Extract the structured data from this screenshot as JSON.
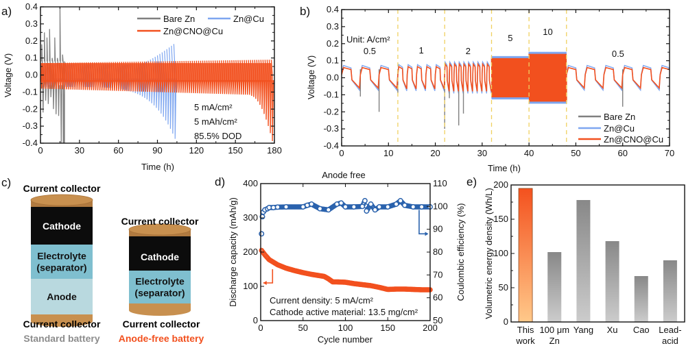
{
  "chart_data": [
    {
      "panel": "a)",
      "type": "line",
      "xlabel": "Time (h)",
      "ylabel": "Voltage (V)",
      "xlim": [
        0,
        180
      ],
      "ylim": [
        -0.4,
        0.4
      ],
      "xticks": [
        0,
        30,
        60,
        90,
        120,
        150,
        180
      ],
      "yticks": [
        "-0.4",
        "-0.3",
        "-0.2",
        "-0.1",
        "0.0",
        "0.1",
        "0.2",
        "0.3",
        "0.4"
      ],
      "legend": [
        "Bare Zn",
        "Zn@Cu",
        "Zn@CNO@Cu"
      ],
      "legend_position": "top-right",
      "annotations": [
        "5 mA/cm²",
        "5 mAh/cm²",
        "85.5% DOD"
      ],
      "series": [
        {
          "name": "Bare Zn",
          "color": "#808080",
          "end_time_h": 18,
          "max_spike_V": 0.4,
          "min_V": -0.4,
          "typical_upper_V": 0.08,
          "typical_lower_V": -0.15
        },
        {
          "name": "Zn@Cu",
          "color": "#7ea6f0",
          "end_time_h": 104,
          "upper_start_V": 0.06,
          "upper_end_V": 0.19,
          "lower_start_V": -0.07,
          "lower_end_V": -0.4
        },
        {
          "name": "Zn@CNO@Cu",
          "color": "#f2501e",
          "end_time_h": 178,
          "upper_start_V": 0.07,
          "upper_end_V": 0.09,
          "lower_start_V": -0.08,
          "lower_end_V": -0.4
        }
      ]
    },
    {
      "panel": "b)",
      "type": "line",
      "xlabel": "Time (h)",
      "ylabel": "Voltage (V)",
      "xlim": [
        0,
        70
      ],
      "ylim": [
        -0.4,
        0.4
      ],
      "xticks": [
        0,
        10,
        20,
        30,
        40,
        50,
        60,
        70
      ],
      "yticks": [
        "-0.4",
        "-0.3",
        "-0.2",
        "-0.1",
        "0.0",
        "0.1",
        "0.2",
        "0.3",
        "0.4"
      ],
      "unit_label": "Unit: A/cm²",
      "segments": [
        {
          "label": "0.5",
          "start": 0,
          "end": 12,
          "amp": 0.06
        },
        {
          "label": "1",
          "start": 12,
          "end": 22,
          "amp": 0.065
        },
        {
          "label": "2",
          "start": 22,
          "end": 32,
          "amp": 0.08
        },
        {
          "label": "5",
          "start": 32,
          "end": 40,
          "amp": 0.115
        },
        {
          "label": "10",
          "start": 40,
          "end": 48,
          "amp": 0.14
        },
        {
          "label": "0.5",
          "start": 48,
          "end": 70,
          "amp": 0.06
        }
      ],
      "dividers": [
        12,
        22,
        32,
        40,
        48
      ],
      "divider_color": "#f0d060",
      "bare_zn_spikes": [
        {
          "t": 4,
          "v": -0.11
        },
        {
          "t": 8,
          "v": -0.2
        },
        {
          "t": 12,
          "v": -0.09
        },
        {
          "t": 22,
          "v": -0.3
        },
        {
          "t": 23,
          "v": -0.12
        },
        {
          "t": 25,
          "v": -0.28
        },
        {
          "t": 26,
          "v": -0.21
        },
        {
          "t": 60,
          "v": -0.17
        }
      ],
      "legend": [
        "Bare Zn",
        "Zn@Cu",
        "Zn@CNO@Cu"
      ],
      "legend_position": "bottom-right"
    },
    {
      "panel": "d)",
      "type": "scatter",
      "title": "Anode free",
      "xlabel": "Cycle number",
      "ylabel": "Discharge capacity (mAh/g)",
      "y2label": "Coulombic efficiency (%)",
      "xlim": [
        0,
        200
      ],
      "ylim": [
        0,
        400
      ],
      "y2lim": [
        50,
        110
      ],
      "xticks": [
        0,
        50,
        100,
        150,
        200
      ],
      "yticks": [
        0,
        100,
        200,
        300,
        400
      ],
      "y2ticks": [
        50,
        60,
        70,
        80,
        90,
        100,
        110
      ],
      "annotations": [
        "Current density: 5 mA/cm²",
        "Cathode active material: 13.5 mg/cm²"
      ],
      "series": [
        {
          "name": "Discharge capacity",
          "axis": "left",
          "color": "#f2501e",
          "x": [
            1,
            5,
            10,
            20,
            30,
            40,
            50,
            60,
            70,
            75,
            80,
            85,
            90,
            100,
            110,
            120,
            130,
            140,
            150,
            160,
            170,
            180,
            190,
            200
          ],
          "y": [
            205,
            192,
            178,
            163,
            153,
            146,
            140,
            135,
            131,
            129,
            122,
            113,
            113,
            112,
            108,
            105,
            102,
            97,
            91,
            92,
            92,
            91,
            90,
            90
          ]
        },
        {
          "name": "Coulombic efficiency",
          "axis": "right",
          "color": "#2a62ad",
          "x": [
            1,
            2,
            3,
            5,
            8,
            10,
            15,
            20,
            30,
            50,
            55,
            60,
            70,
            80,
            90,
            95,
            100,
            110,
            120,
            123,
            125,
            130,
            135,
            140,
            150,
            160,
            165,
            170,
            180,
            190,
            200
          ],
          "y": [
            88,
            95.5,
            97.5,
            98.5,
            99,
            99.5,
            99.5,
            99.7,
            99.8,
            99.8,
            100.5,
            101,
            99,
            98.5,
            101,
            101.5,
            99.8,
            99.8,
            100,
            102.5,
            98,
            101,
            98.5,
            99.8,
            99.8,
            101,
            102.5,
            100.5,
            99.8,
            99.8,
            99.8
          ]
        }
      ]
    },
    {
      "panel": "e)",
      "type": "bar",
      "ylabel": "Volumetric energy density (Wh/L)",
      "ylim": [
        0,
        200
      ],
      "yticks": [
        0,
        50,
        100,
        150,
        200
      ],
      "categories": [
        "This work",
        "100 μm Zn",
        "Yang",
        "Xu",
        "Cao",
        "Lead-acid"
      ],
      "category_lines": [
        [
          "This",
          "work"
        ],
        [
          "100 μm",
          "Zn"
        ],
        [
          "Yang"
        ],
        [
          "Xu"
        ],
        [
          "Cao"
        ],
        [
          "Lead-",
          "acid"
        ]
      ],
      "values": [
        195,
        102,
        178,
        118,
        67,
        90
      ],
      "colors": {
        "highlight_top": "#f4511e",
        "highlight_bottom": "#ffc98a",
        "other_top": "#888888",
        "other_bottom": "#cccccc"
      }
    }
  ],
  "diagram_c": {
    "panel": "c)",
    "standard": {
      "top_label": "Current collector",
      "layers": [
        "Cathode",
        "Electrolyte\n(separator)",
        "Anode"
      ],
      "bottom_label": "Current collector",
      "caption": "Standard battery",
      "caption_color": "#8c8c8c"
    },
    "anode_free": {
      "top_label": "Current collector",
      "layers": [
        "Cathode",
        "Electrolyte\n(separator)"
      ],
      "bottom_label": "Current collector",
      "caption": "Anode-free battery",
      "caption_color": "#f2501e"
    },
    "colors": {
      "collector": "#c8904f",
      "cathode": "#0c0c0c",
      "electrolyte": "#7fbfcf",
      "anode": "#b9d9df"
    }
  }
}
